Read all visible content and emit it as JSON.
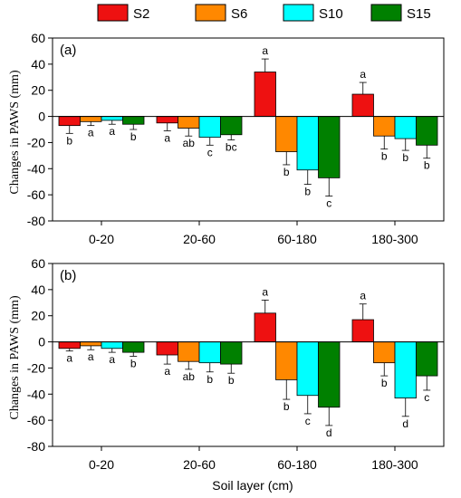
{
  "chart_data": {
    "type": "bar",
    "legend": {
      "placement": "top-center",
      "entries": [
        {
          "name": "S2",
          "color": "#ee1111"
        },
        {
          "name": "S6",
          "color": "#ff8800"
        },
        {
          "name": "S10",
          "color": "#00ffff"
        },
        {
          "name": "S15",
          "color": "#008000"
        }
      ]
    },
    "xlabel": "Soil layer (cm)",
    "ylabel": "Changes in PAWS (mm)",
    "categories": [
      "0-20",
      "20-60",
      "60-180",
      "180-300"
    ],
    "yticks": [
      60,
      40,
      20,
      0,
      -20,
      -40,
      -60,
      -80
    ],
    "ylim": [
      -80,
      60
    ],
    "panels": [
      {
        "label": "(a)",
        "series": [
          {
            "name": "S2",
            "values": [
              -7,
              -5,
              34,
              17
            ],
            "errors": [
              6,
              6,
              10,
              9
            ],
            "letters": [
              "b",
              "a",
              "a",
              "a"
            ]
          },
          {
            "name": "S6",
            "values": [
              -4,
              -9,
              -27,
              -15
            ],
            "errors": [
              3,
              6,
              10,
              10
            ],
            "letters": [
              "a",
              "ab",
              "b",
              "b"
            ]
          },
          {
            "name": "S10",
            "values": [
              -3,
              -16,
              -41,
              -17
            ],
            "errors": [
              3,
              6,
              11,
              9
            ],
            "letters": [
              "a",
              "c",
              "b",
              "b"
            ]
          },
          {
            "name": "S15",
            "values": [
              -6,
              -14,
              -47,
              -22
            ],
            "errors": [
              4,
              4,
              14,
              10
            ],
            "letters": [
              "b",
              "bc",
              "c",
              "b"
            ]
          }
        ]
      },
      {
        "label": "(b)",
        "series": [
          {
            "name": "S2",
            "values": [
              -5,
              -10,
              22,
              17
            ],
            "errors": [
              2,
              7,
              10,
              12
            ],
            "letters": [
              "a",
              "a",
              "a",
              "a"
            ]
          },
          {
            "name": "S6",
            "values": [
              -3,
              -15,
              -29,
              -16
            ],
            "errors": [
              3,
              6,
              15,
              10
            ],
            "letters": [
              "a",
              "ab",
              "b",
              "b"
            ]
          },
          {
            "name": "S10",
            "values": [
              -5,
              -16,
              -41,
              -43
            ],
            "errors": [
              3,
              7,
              14,
              14
            ],
            "letters": [
              "a",
              "b",
              "c",
              "d"
            ]
          },
          {
            "name": "S15",
            "values": [
              -8,
              -17,
              -50,
              -26
            ],
            "errors": [
              3,
              7,
              14,
              11
            ],
            "letters": [
              "b",
              "b",
              "d",
              "c"
            ]
          }
        ]
      }
    ]
  }
}
